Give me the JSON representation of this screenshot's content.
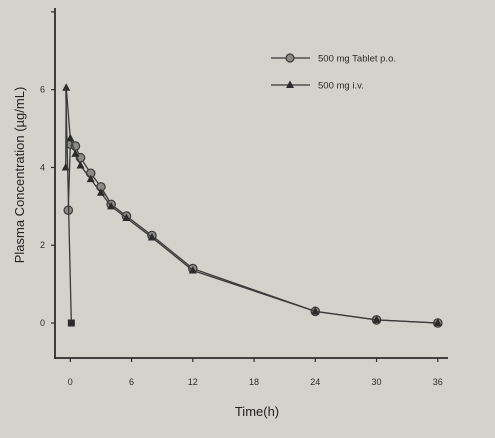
{
  "chart_data": {
    "type": "line",
    "title": "",
    "xlabel": "Time(h)",
    "ylabel": "Plasma Concentration (µg/mL)",
    "x_ticks": [
      "0",
      "6",
      "12",
      "18",
      "24",
      "30",
      "36"
    ],
    "y_ticks": [
      "0",
      "2",
      "4",
      "6"
    ],
    "xlim": [
      -1.5,
      37
    ],
    "ylim": [
      -0.9,
      8.1
    ],
    "grid": false,
    "legend_position": "top-right",
    "series": [
      {
        "name": "500 mg Tablet p.o.",
        "marker": "circle",
        "x": [
          -0.2,
          0,
          0.5,
          1,
          2,
          3,
          4,
          5.5,
          8,
          12,
          24,
          30,
          36
        ],
        "y": [
          2.9,
          4.6,
          4.55,
          4.25,
          3.85,
          3.5,
          3.05,
          2.75,
          2.25,
          1.4,
          0.3,
          0.08,
          0.0
        ]
      },
      {
        "name": "500 mg i.v.",
        "marker": "triangle",
        "x": [
          -0.45,
          -0.4,
          0,
          0.5,
          1,
          2,
          3,
          4,
          5.5,
          8,
          12,
          24,
          30,
          36
        ],
        "y": [
          4.0,
          6.05,
          4.75,
          4.35,
          4.05,
          3.7,
          3.35,
          3.0,
          2.7,
          2.2,
          1.35,
          0.3,
          0.08,
          0.0
        ]
      },
      {
        "name": "",
        "marker": "square",
        "x": [
          -0.45,
          0.1
        ],
        "y": [
          6.05,
          0.0
        ]
      }
    ]
  }
}
